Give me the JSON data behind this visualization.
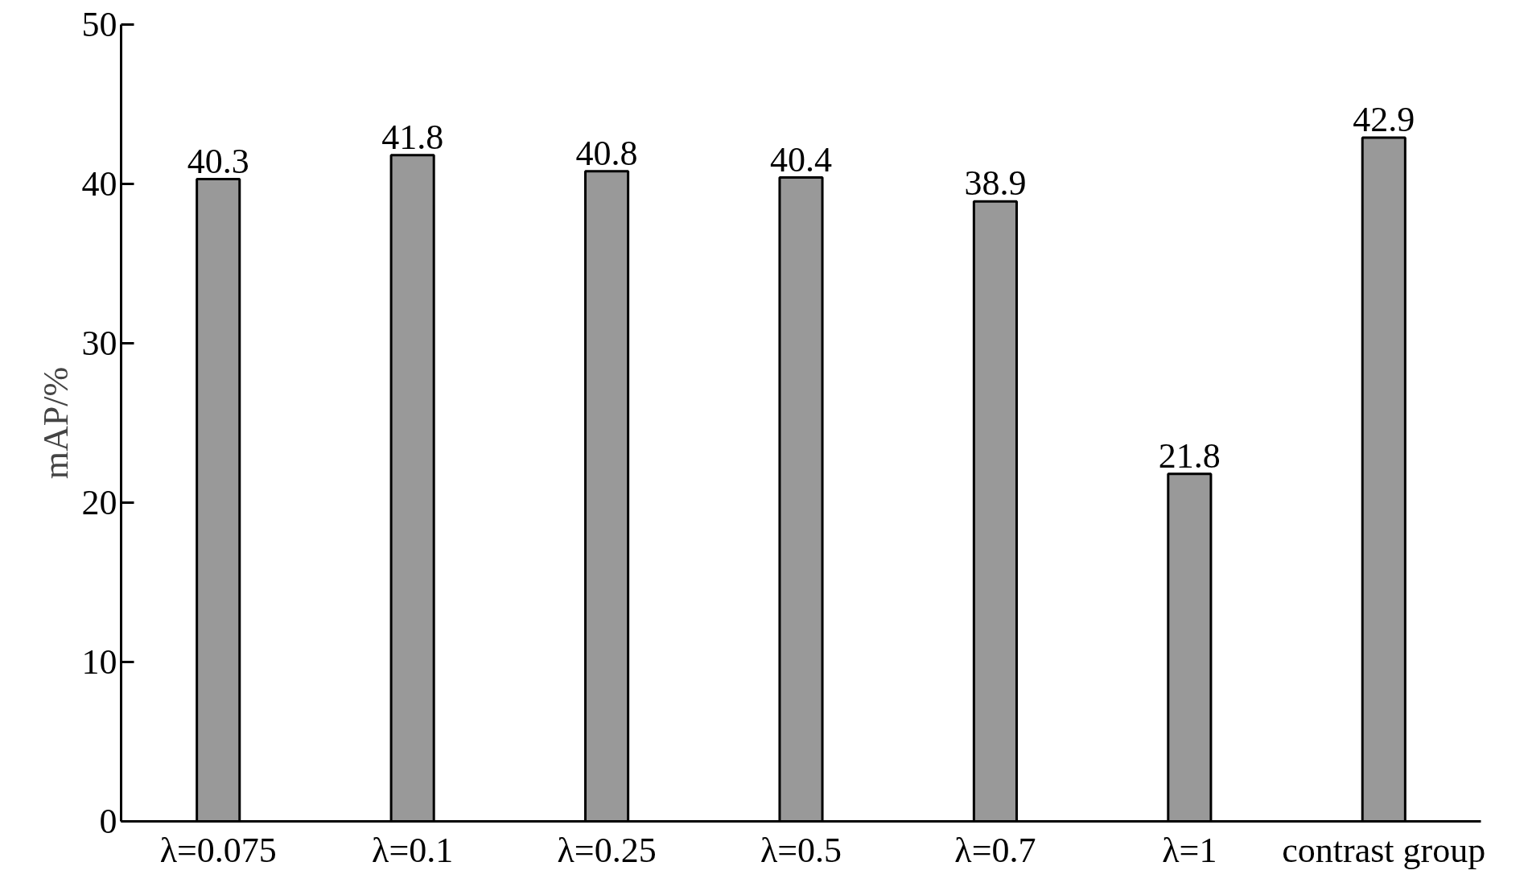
{
  "chart_data": {
    "type": "bar",
    "ylabel": "mAP/%",
    "categories": [
      "λ=0.075",
      "λ=0.1",
      "λ=0.25",
      "λ=0.5",
      "λ=0.7",
      "λ=1",
      "contrast group"
    ],
    "values": [
      40.3,
      41.8,
      40.8,
      40.4,
      38.9,
      21.8,
      42.9
    ],
    "color": "#999999",
    "ylim": [
      0,
      50
    ],
    "yticks": [
      0,
      10,
      20,
      30,
      40,
      50
    ],
    "data_labels": true,
    "grid": false
  }
}
